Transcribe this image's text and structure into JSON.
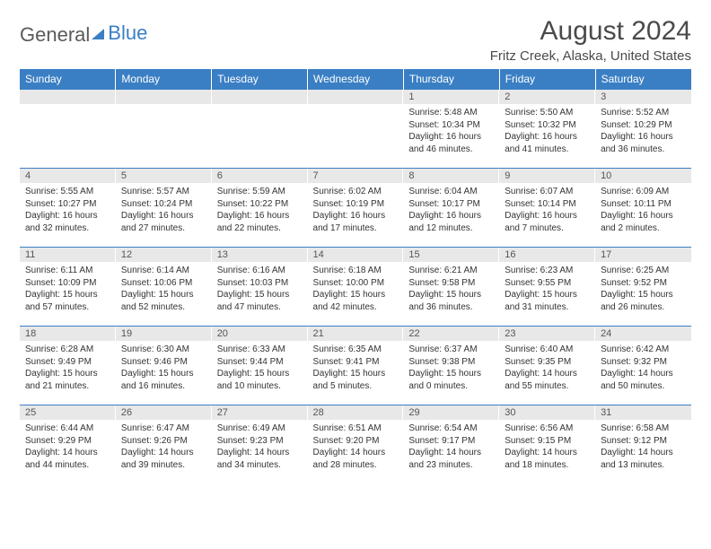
{
  "logo": {
    "text_gray": "General",
    "text_blue": "Blue"
  },
  "title": "August 2024",
  "location": "Fritz Creek, Alaska, United States",
  "colors": {
    "header_bg": "#3a7fc4",
    "header_text": "#ffffff",
    "daynum_bg": "#e8e8e8",
    "border": "#3a7fc4",
    "body_text": "#333333"
  },
  "typography": {
    "title_fontsize": 30,
    "location_fontsize": 15,
    "dayheader_fontsize": 12,
    "daynum_fontsize": 11,
    "body_fontsize": 10
  },
  "day_headers": [
    "Sunday",
    "Monday",
    "Tuesday",
    "Wednesday",
    "Thursday",
    "Friday",
    "Saturday"
  ],
  "weeks": [
    [
      null,
      null,
      null,
      null,
      {
        "n": "1",
        "sr": "Sunrise: 5:48 AM",
        "ss": "Sunset: 10:34 PM",
        "dl": "Daylight: 16 hours and 46 minutes."
      },
      {
        "n": "2",
        "sr": "Sunrise: 5:50 AM",
        "ss": "Sunset: 10:32 PM",
        "dl": "Daylight: 16 hours and 41 minutes."
      },
      {
        "n": "3",
        "sr": "Sunrise: 5:52 AM",
        "ss": "Sunset: 10:29 PM",
        "dl": "Daylight: 16 hours and 36 minutes."
      }
    ],
    [
      {
        "n": "4",
        "sr": "Sunrise: 5:55 AM",
        "ss": "Sunset: 10:27 PM",
        "dl": "Daylight: 16 hours and 32 minutes."
      },
      {
        "n": "5",
        "sr": "Sunrise: 5:57 AM",
        "ss": "Sunset: 10:24 PM",
        "dl": "Daylight: 16 hours and 27 minutes."
      },
      {
        "n": "6",
        "sr": "Sunrise: 5:59 AM",
        "ss": "Sunset: 10:22 PM",
        "dl": "Daylight: 16 hours and 22 minutes."
      },
      {
        "n": "7",
        "sr": "Sunrise: 6:02 AM",
        "ss": "Sunset: 10:19 PM",
        "dl": "Daylight: 16 hours and 17 minutes."
      },
      {
        "n": "8",
        "sr": "Sunrise: 6:04 AM",
        "ss": "Sunset: 10:17 PM",
        "dl": "Daylight: 16 hours and 12 minutes."
      },
      {
        "n": "9",
        "sr": "Sunrise: 6:07 AM",
        "ss": "Sunset: 10:14 PM",
        "dl": "Daylight: 16 hours and 7 minutes."
      },
      {
        "n": "10",
        "sr": "Sunrise: 6:09 AM",
        "ss": "Sunset: 10:11 PM",
        "dl": "Daylight: 16 hours and 2 minutes."
      }
    ],
    [
      {
        "n": "11",
        "sr": "Sunrise: 6:11 AM",
        "ss": "Sunset: 10:09 PM",
        "dl": "Daylight: 15 hours and 57 minutes."
      },
      {
        "n": "12",
        "sr": "Sunrise: 6:14 AM",
        "ss": "Sunset: 10:06 PM",
        "dl": "Daylight: 15 hours and 52 minutes."
      },
      {
        "n": "13",
        "sr": "Sunrise: 6:16 AM",
        "ss": "Sunset: 10:03 PM",
        "dl": "Daylight: 15 hours and 47 minutes."
      },
      {
        "n": "14",
        "sr": "Sunrise: 6:18 AM",
        "ss": "Sunset: 10:00 PM",
        "dl": "Daylight: 15 hours and 42 minutes."
      },
      {
        "n": "15",
        "sr": "Sunrise: 6:21 AM",
        "ss": "Sunset: 9:58 PM",
        "dl": "Daylight: 15 hours and 36 minutes."
      },
      {
        "n": "16",
        "sr": "Sunrise: 6:23 AM",
        "ss": "Sunset: 9:55 PM",
        "dl": "Daylight: 15 hours and 31 minutes."
      },
      {
        "n": "17",
        "sr": "Sunrise: 6:25 AM",
        "ss": "Sunset: 9:52 PM",
        "dl": "Daylight: 15 hours and 26 minutes."
      }
    ],
    [
      {
        "n": "18",
        "sr": "Sunrise: 6:28 AM",
        "ss": "Sunset: 9:49 PM",
        "dl": "Daylight: 15 hours and 21 minutes."
      },
      {
        "n": "19",
        "sr": "Sunrise: 6:30 AM",
        "ss": "Sunset: 9:46 PM",
        "dl": "Daylight: 15 hours and 16 minutes."
      },
      {
        "n": "20",
        "sr": "Sunrise: 6:33 AM",
        "ss": "Sunset: 9:44 PM",
        "dl": "Daylight: 15 hours and 10 minutes."
      },
      {
        "n": "21",
        "sr": "Sunrise: 6:35 AM",
        "ss": "Sunset: 9:41 PM",
        "dl": "Daylight: 15 hours and 5 minutes."
      },
      {
        "n": "22",
        "sr": "Sunrise: 6:37 AM",
        "ss": "Sunset: 9:38 PM",
        "dl": "Daylight: 15 hours and 0 minutes."
      },
      {
        "n": "23",
        "sr": "Sunrise: 6:40 AM",
        "ss": "Sunset: 9:35 PM",
        "dl": "Daylight: 14 hours and 55 minutes."
      },
      {
        "n": "24",
        "sr": "Sunrise: 6:42 AM",
        "ss": "Sunset: 9:32 PM",
        "dl": "Daylight: 14 hours and 50 minutes."
      }
    ],
    [
      {
        "n": "25",
        "sr": "Sunrise: 6:44 AM",
        "ss": "Sunset: 9:29 PM",
        "dl": "Daylight: 14 hours and 44 minutes."
      },
      {
        "n": "26",
        "sr": "Sunrise: 6:47 AM",
        "ss": "Sunset: 9:26 PM",
        "dl": "Daylight: 14 hours and 39 minutes."
      },
      {
        "n": "27",
        "sr": "Sunrise: 6:49 AM",
        "ss": "Sunset: 9:23 PM",
        "dl": "Daylight: 14 hours and 34 minutes."
      },
      {
        "n": "28",
        "sr": "Sunrise: 6:51 AM",
        "ss": "Sunset: 9:20 PM",
        "dl": "Daylight: 14 hours and 28 minutes."
      },
      {
        "n": "29",
        "sr": "Sunrise: 6:54 AM",
        "ss": "Sunset: 9:17 PM",
        "dl": "Daylight: 14 hours and 23 minutes."
      },
      {
        "n": "30",
        "sr": "Sunrise: 6:56 AM",
        "ss": "Sunset: 9:15 PM",
        "dl": "Daylight: 14 hours and 18 minutes."
      },
      {
        "n": "31",
        "sr": "Sunrise: 6:58 AM",
        "ss": "Sunset: 9:12 PM",
        "dl": "Daylight: 14 hours and 13 minutes."
      }
    ]
  ]
}
